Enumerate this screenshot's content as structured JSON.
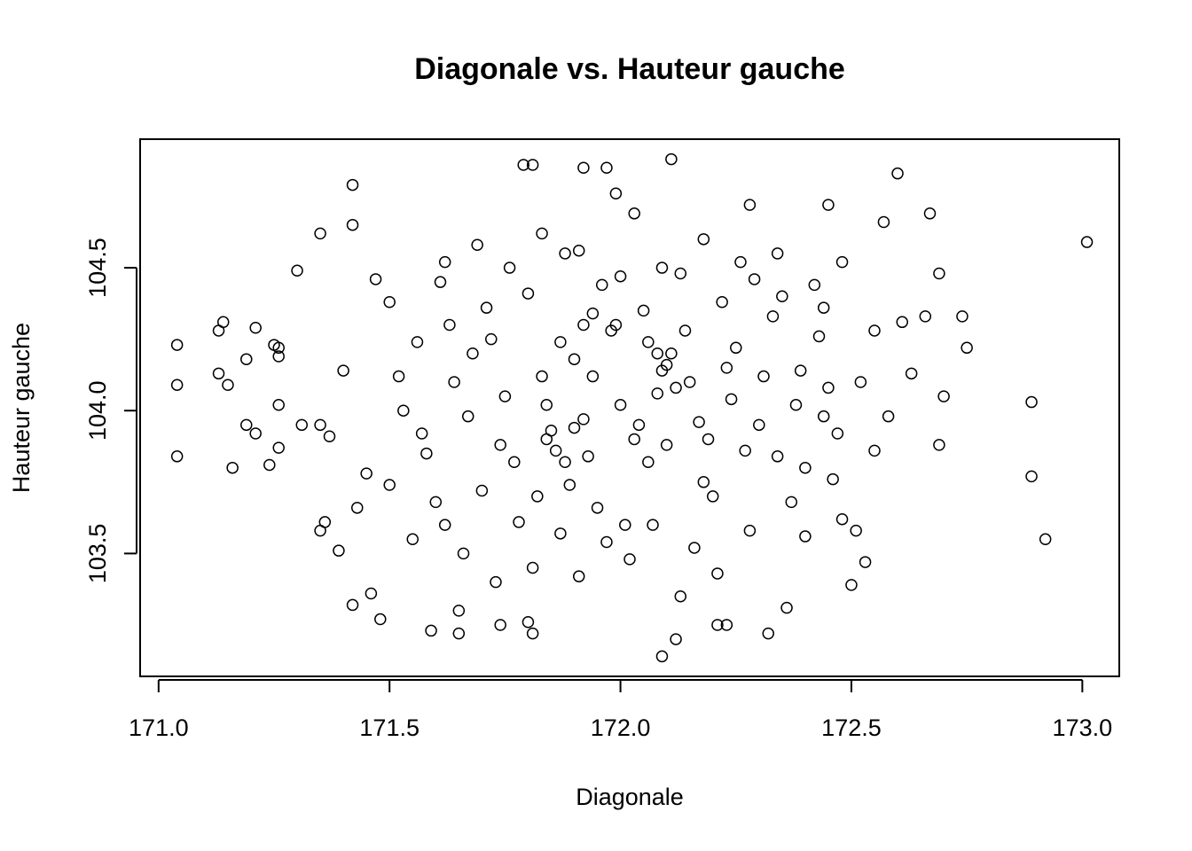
{
  "chart_data": {
    "type": "scatter",
    "title": "Diagonale vs. Hauteur gauche",
    "x_label": "Diagonale",
    "y_label": "Hauteur gauche",
    "color": "#000000",
    "xlim": [
      170.96,
      173.08
    ],
    "ylim": [
      103.07,
      104.95
    ],
    "xticks": [
      {
        "value": 171,
        "label": "171.0"
      },
      171.5,
      {
        "value": 172,
        "label": "172.0"
      },
      172.5,
      {
        "value": 173,
        "label": "173.0"
      }
    ],
    "yticks": [
      103.5,
      {
        "value": 104,
        "label": "104.0"
      },
      104.5
    ],
    "x": [
      171.04,
      171.04,
      171.04,
      171.13,
      171.14,
      171.13,
      171.15,
      171.16,
      171.19,
      171.19,
      171.21,
      171.21,
      171.24,
      171.25,
      171.26,
      171.26,
      171.26,
      171.26,
      171.3,
      171.35,
      171.42,
      171.42,
      171.31,
      171.35,
      171.37,
      171.35,
      171.36,
      171.39,
      171.42,
      171.46,
      171.48,
      171.59,
      171.65,
      171.65,
      171.74,
      171.8,
      171.81,
      171.79,
      171.81,
      171.92,
      171.97,
      171.99,
      172.03,
      172.11,
      172.09,
      172.12,
      172.13,
      172.21,
      172.23,
      172.32,
      172.36,
      172.6,
      172.67,
      172.69,
      172.61,
      172.66,
      172.74,
      172.75,
      172.7,
      172.69,
      172.89,
      172.89,
      172.92,
      173.01,
      172.63,
      172.57,
      172.53,
      172.5,
      172.45,
      172.28,
      171.52,
      171.58,
      171.63,
      171.7,
      171.75,
      171.8,
      171.85,
      171.9,
      171.95,
      172.0,
      172.05,
      172.1,
      172.15,
      172.2,
      172.25,
      172.3,
      172.35,
      172.4,
      172.45,
      172.48,
      171.55,
      171.61,
      171.67,
      171.72,
      171.78,
      171.83,
      171.88,
      171.93,
      171.98,
      172.03,
      172.08,
      172.13,
      172.18,
      172.23,
      172.28,
      172.33,
      172.38,
      172.43,
      172.47,
      171.5,
      171.45,
      171.53,
      171.6,
      171.68,
      171.74,
      171.82,
      171.87,
      171.92,
      171.96,
      172.01,
      172.06,
      172.11,
      172.17,
      172.22,
      172.27,
      172.31,
      172.37,
      172.42,
      172.46,
      172.52,
      171.4,
      171.47,
      171.57,
      171.64,
      171.71,
      171.77,
      171.84,
      171.89,
      171.94,
      171.99,
      172.04,
      172.09,
      172.14,
      172.19,
      172.24,
      172.29,
      172.34,
      172.39,
      172.44,
      172.55,
      171.84,
      171.86,
      171.88,
      171.9,
      171.92,
      171.94,
      172.06,
      172.08,
      172.1,
      172.12,
      171.66,
      171.73,
      171.81,
      171.87,
      171.91,
      171.97,
      172.02,
      172.07,
      172.16,
      172.21,
      171.62,
      171.69,
      171.76,
      171.83,
      171.91,
      172.0,
      172.09,
      172.18,
      172.26,
      172.34,
      171.43,
      171.5,
      171.56,
      171.62,
      172.4,
      172.44,
      172.48,
      172.51,
      172.55,
      172.58
    ],
    "values": [
      104.23,
      104.09,
      103.84,
      104.28,
      104.31,
      104.13,
      104.09,
      103.8,
      104.18,
      103.95,
      104.29,
      103.92,
      103.81,
      104.23,
      104.22,
      104.19,
      104.02,
      103.87,
      104.49,
      104.62,
      104.79,
      104.65,
      103.95,
      103.95,
      103.91,
      103.58,
      103.61,
      103.51,
      103.32,
      103.36,
      103.27,
      103.23,
      103.22,
      103.3,
      103.25,
      103.26,
      103.22,
      104.86,
      104.86,
      104.85,
      104.85,
      104.76,
      104.69,
      104.88,
      103.14,
      103.2,
      103.35,
      103.25,
      103.25,
      103.22,
      103.31,
      104.83,
      104.69,
      104.48,
      104.31,
      104.33,
      104.33,
      104.22,
      104.05,
      103.88,
      104.03,
      103.77,
      103.55,
      104.59,
      104.13,
      104.66,
      103.47,
      103.39,
      104.72,
      104.72,
      104.12,
      103.85,
      104.3,
      103.72,
      104.05,
      104.41,
      103.93,
      104.18,
      103.66,
      104.02,
      104.35,
      103.88,
      104.1,
      103.7,
      104.22,
      103.95,
      104.4,
      103.8,
      104.08,
      103.62,
      103.55,
      104.45,
      103.98,
      104.25,
      103.61,
      104.12,
      104.55,
      103.84,
      104.28,
      103.9,
      104.06,
      104.48,
      103.75,
      104.15,
      103.58,
      104.33,
      104.02,
      104.26,
      103.92,
      104.38,
      103.78,
      104.0,
      103.68,
      104.2,
      103.88,
      103.7,
      104.24,
      103.97,
      104.44,
      103.6,
      103.82,
      104.2,
      103.96,
      104.38,
      103.86,
      104.12,
      103.68,
      104.44,
      103.76,
      104.1,
      104.14,
      104.46,
      103.92,
      104.1,
      104.36,
      103.82,
      104.02,
      103.74,
      104.12,
      104.3,
      103.95,
      104.14,
      104.28,
      103.9,
      104.04,
      104.46,
      103.84,
      104.14,
      103.98,
      103.86,
      103.9,
      103.86,
      103.82,
      103.94,
      104.3,
      104.34,
      104.24,
      104.2,
      104.16,
      104.08,
      103.5,
      103.4,
      103.45,
      103.57,
      103.42,
      103.54,
      103.48,
      103.6,
      103.52,
      103.43,
      104.52,
      104.58,
      104.5,
      104.62,
      104.56,
      104.47,
      104.5,
      104.6,
      104.52,
      104.55,
      103.66,
      103.74,
      104.24,
      103.6,
      103.56,
      104.36,
      104.52,
      103.58,
      104.28,
      103.98
    ]
  }
}
